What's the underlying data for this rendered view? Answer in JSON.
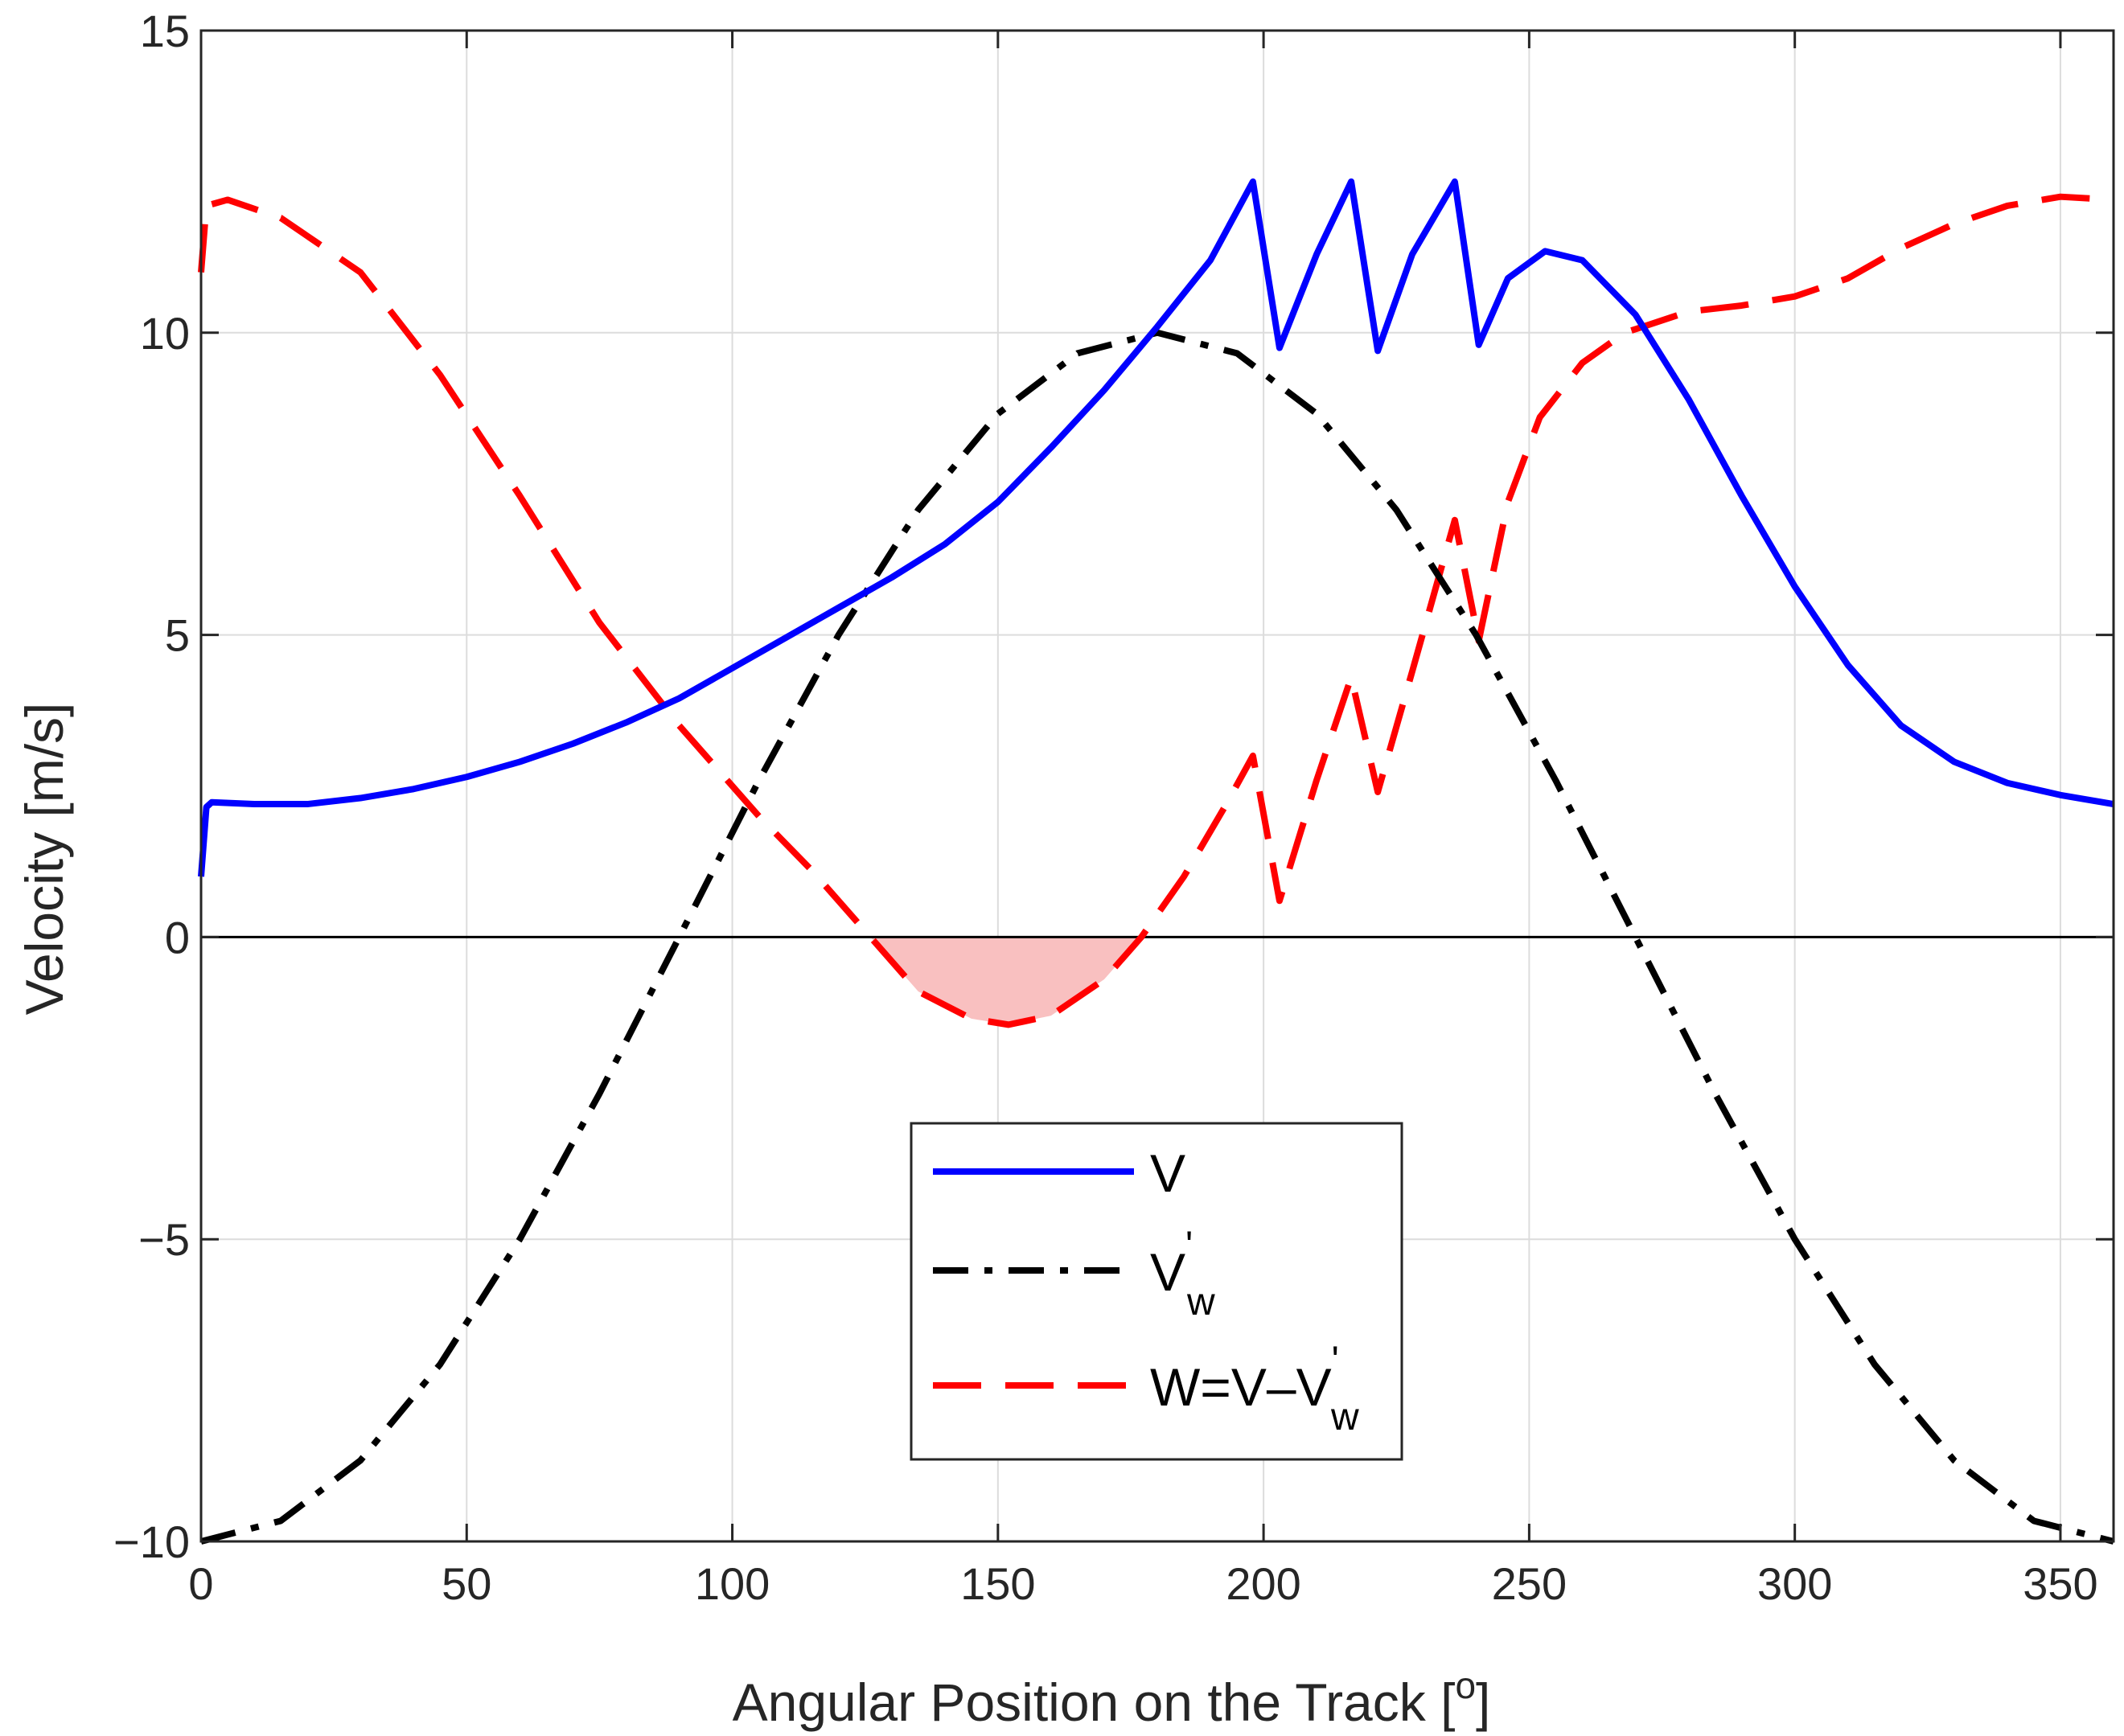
{
  "chart_data": {
    "type": "line",
    "xlabel": "Angular Position on the Track [",
    "xlabel_sup": "o",
    "xlabel_close": "]",
    "ylabel": "Velocity [m/s]",
    "xlim": [
      0,
      360
    ],
    "ylim": [
      -10,
      15
    ],
    "xticks": [
      0,
      50,
      100,
      150,
      200,
      250,
      300,
      350
    ],
    "yticks": [
      -10,
      -5,
      0,
      5,
      10,
      15
    ],
    "xtick_labels": [
      "0",
      "50",
      "100",
      "150",
      "200",
      "250",
      "300",
      "350"
    ],
    "ytick_labels": [
      "−10",
      "−5",
      "0",
      "5",
      "10",
      "15"
    ],
    "grid": true,
    "zero_line": true,
    "legend_placement": "lower-center",
    "series": [
      {
        "name": "V",
        "color": "#0000ff",
        "style": "solid",
        "x": [
          0,
          1,
          2,
          10,
          20,
          30,
          40,
          50,
          60,
          70,
          80,
          90,
          100,
          110,
          120,
          130,
          140,
          150,
          160,
          170,
          180,
          190,
          198,
          203,
          210,
          216.5,
          221.5,
          228,
          236,
          240.5,
          246,
          253,
          260,
          270,
          280,
          290,
          300,
          310,
          320,
          330,
          340,
          350,
          360
        ],
        "y": [
          1.0,
          2.15,
          2.23,
          2.2,
          2.2,
          2.3,
          2.45,
          2.65,
          2.9,
          3.2,
          3.55,
          3.95,
          4.45,
          4.95,
          5.45,
          5.95,
          6.5,
          7.2,
          8.1,
          9.05,
          10.1,
          11.2,
          12.5,
          9.75,
          11.3,
          12.5,
          9.7,
          11.3,
          12.5,
          9.8,
          10.9,
          11.35,
          11.2,
          10.3,
          8.9,
          7.3,
          5.8,
          4.5,
          3.5,
          2.9,
          2.55,
          2.35,
          2.2
        ]
      },
      {
        "name": "V",
        "name_sup": "'",
        "name_sub": "w",
        "color": "#000000",
        "style": "dashdot",
        "x": [
          0,
          15,
          30,
          45,
          60,
          75,
          90,
          105,
          120,
          135,
          150,
          165,
          180,
          195,
          210,
          225,
          240,
          255,
          270,
          285,
          300,
          315,
          330,
          345,
          360
        ],
        "y": [
          -10.0,
          -9.66,
          -8.66,
          -7.07,
          -5.0,
          -2.59,
          0.0,
          2.59,
          5.0,
          7.07,
          8.66,
          9.66,
          10.0,
          9.66,
          8.66,
          7.07,
          5.0,
          2.59,
          0.0,
          -2.59,
          -5.0,
          -7.07,
          -8.66,
          -9.66,
          -10.0
        ]
      },
      {
        "name": "W=V–V",
        "name_sup": "'",
        "name_sub": "w",
        "color": "#ff0000",
        "style": "dashed",
        "x": [
          0,
          1,
          5,
          15,
          30,
          45,
          60,
          75,
          90,
          105,
          115,
          125,
          135,
          145,
          152,
          160,
          170,
          177,
          185,
          193,
          198,
          203,
          210,
          216.5,
          221.5,
          228,
          236,
          240.5,
          246,
          252,
          260,
          268,
          280,
          290,
          300,
          310,
          320,
          330,
          340,
          350,
          360
        ],
        "y": [
          11.0,
          12.1,
          12.2,
          11.9,
          11.0,
          9.3,
          7.3,
          5.2,
          3.5,
          2.0,
          1.1,
          0.1,
          -0.9,
          -1.35,
          -1.45,
          -1.3,
          -0.7,
          0.0,
          1.0,
          2.2,
          3.0,
          0.6,
          2.6,
          4.3,
          2.4,
          4.4,
          6.9,
          4.9,
          7.2,
          8.6,
          9.5,
          10.0,
          10.35,
          10.45,
          10.6,
          10.9,
          11.4,
          11.8,
          12.1,
          12.25,
          12.2
        ]
      }
    ],
    "shaded_region": {
      "series": "W=V–V",
      "color": "#f9c0c0",
      "x_range": [
        125,
        178
      ],
      "baseline": 0
    }
  }
}
